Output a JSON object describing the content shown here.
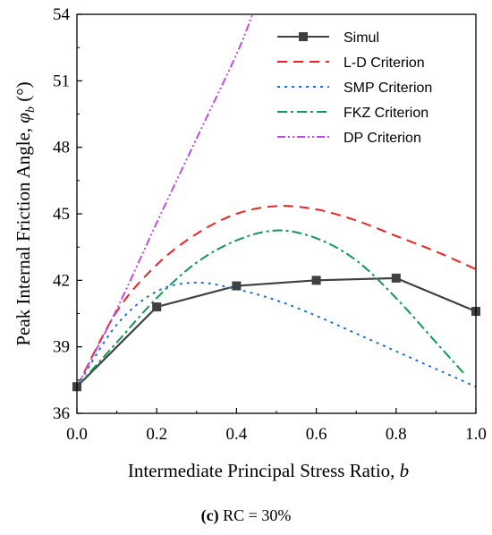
{
  "chart_data": {
    "type": "line",
    "xlabel": "Intermediate Principal Stress Ratio, ",
    "xlabel_var": "b",
    "ylabel": "Peak Internal Friction Angle, ",
    "ylabel_var": "φ",
    "ylabel_sub": "b",
    "ylabel_unit": " (°)",
    "xlim": [
      0.0,
      1.0
    ],
    "ylim": [
      36,
      54
    ],
    "x_ticks": [
      "0.0",
      "0.2",
      "0.4",
      "0.6",
      "0.8",
      "1.0"
    ],
    "y_ticks": [
      "36",
      "39",
      "42",
      "45",
      "48",
      "51",
      "54"
    ],
    "legend_position": "top-right",
    "grid": false,
    "series": [
      {
        "name": "Simul",
        "color": "#404040",
        "style": "solid-square-markers",
        "x": [
          0.0,
          0.2,
          0.4,
          0.6,
          0.8,
          1.0
        ],
        "y": [
          37.2,
          40.8,
          41.75,
          42.0,
          42.1,
          40.6
        ]
      },
      {
        "name": "L-D Criterion",
        "color": "#ee2222",
        "style": "dash",
        "x": [
          0.0,
          0.1,
          0.2,
          0.3,
          0.4,
          0.5,
          0.6,
          0.7,
          0.8,
          0.9,
          1.0
        ],
        "y": [
          37.2,
          40.6,
          42.7,
          44.1,
          45.0,
          45.35,
          45.2,
          44.7,
          44.0,
          43.3,
          42.5
        ]
      },
      {
        "name": "SMP Criterion",
        "color": "#1e6fe0",
        "style": "dot",
        "x": [
          0.0,
          0.1,
          0.2,
          0.3,
          0.4,
          0.5,
          0.6,
          0.7,
          0.8,
          0.9,
          1.0
        ],
        "y": [
          37.2,
          40.0,
          41.5,
          41.9,
          41.6,
          41.1,
          40.4,
          39.6,
          38.8,
          38.0,
          37.2
        ]
      },
      {
        "name": "FKZ Criterion",
        "color": "#0f9a5a",
        "style": "dash-dot",
        "x": [
          0.0,
          0.1,
          0.2,
          0.3,
          0.4,
          0.5,
          0.6,
          0.7,
          0.8,
          0.9,
          0.97
        ],
        "y": [
          37.2,
          39.2,
          41.2,
          42.8,
          43.8,
          44.25,
          43.9,
          42.9,
          41.2,
          39.2,
          37.8
        ]
      },
      {
        "name": "DP Criterion",
        "color": "#c04ce0",
        "style": "dash-dot-dot",
        "x": [
          0.0,
          0.1,
          0.2,
          0.3,
          0.4,
          0.44
        ],
        "y": [
          37.2,
          40.7,
          44.6,
          48.4,
          52.2,
          54.0
        ]
      }
    ]
  },
  "caption": {
    "label": "(c)",
    "text": " RC = 30%"
  }
}
